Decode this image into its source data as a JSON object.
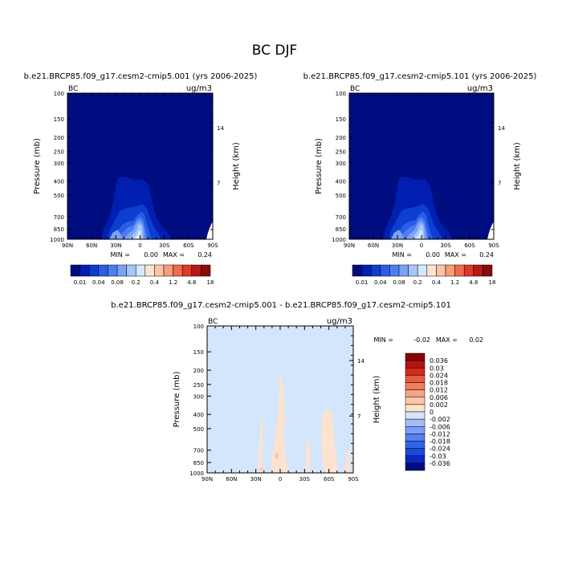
{
  "title": "BC DJF",
  "colors": {
    "top_palette": [
      "#000d80",
      "#001eb0",
      "#0c3ed0",
      "#2a5ee6",
      "#4d7ef0",
      "#7aa2f5",
      "#a8c5fa",
      "#d6e8ff",
      "#ffe5d0",
      "#fcc3a6",
      "#f79c7a",
      "#f06a4c",
      "#e0392a",
      "#b81818",
      "#8a0c0c"
    ],
    "diff_palette": [
      "#000d80",
      "#0a28c0",
      "#1d49e0",
      "#3364ec",
      "#567ff2",
      "#7b9ff7",
      "#a4bdf9",
      "#d4e6fb",
      "#fbe3cf",
      "#f9c6a7",
      "#f5a483",
      "#f0805f",
      "#e85a3e",
      "#d52a1f",
      "#b31410",
      "#8a0404"
    ],
    "diff_background": "#d4e6fb",
    "diff_patch": "#fbe3cf",
    "diff_patch_dark": "#f9c6a7"
  },
  "chart_data": [
    {
      "type": "heatmap",
      "title": "b.e21.BRCP85.f09_g17.cesm2-cmip5.001 (yrs 2006-2025)",
      "variable_label": "BC",
      "units_label": "ug/m3",
      "ylabel": "Pressure (mb)",
      "y2label": "Height (km)",
      "x_ticks": [
        "90N",
        "60N",
        "30N",
        "0",
        "30S",
        "60S",
        "90S"
      ],
      "y_ticks": [
        "100",
        "150",
        "200",
        "250",
        "300",
        "400",
        "500",
        "700",
        "850",
        "1000"
      ],
      "y2_ticks": [
        "14",
        "7"
      ],
      "min_label": "MIN =",
      "min_value": "0.00",
      "max_label": "MAX =",
      "max_value": "0.24",
      "colorbar_labels": [
        "0.01",
        "0.04",
        "0.08",
        "0.2",
        "0.4",
        "1.2",
        "4.8",
        "18"
      ],
      "field": {
        "max_center_lat": 0,
        "max_level_mb": 800,
        "plume_top_mb": 380,
        "plume_lat_range": [
          "45N",
          "20S"
        ]
      }
    },
    {
      "type": "heatmap",
      "title": "b.e21.BRCP85.f09_g17.cesm2-cmip5.101 (yrs 2006-2025)",
      "variable_label": "BC",
      "units_label": "ug/m3",
      "ylabel": "Pressure (mb)",
      "y2label": "Height (km)",
      "x_ticks": [
        "90N",
        "60N",
        "30N",
        "0",
        "30S",
        "60S",
        "90S"
      ],
      "y_ticks": [
        "100",
        "150",
        "200",
        "250",
        "300",
        "400",
        "500",
        "700",
        "850",
        "1000"
      ],
      "y2_ticks": [
        "14",
        "7"
      ],
      "min_label": "MIN =",
      "min_value": "0.00",
      "max_label": "MAX =",
      "max_value": "0.24",
      "colorbar_labels": [
        "0.01",
        "0.04",
        "0.08",
        "0.2",
        "0.4",
        "1.2",
        "4.8",
        "18"
      ],
      "field": {
        "max_center_lat": 0,
        "max_level_mb": 800,
        "plume_top_mb": 380,
        "plume_lat_range": [
          "45N",
          "20S"
        ]
      }
    },
    {
      "type": "heatmap",
      "title": "b.e21.BRCP85.f09_g17.cesm2-cmip5.001 - b.e21.BRCP85.f09_g17.cesm2-cmip5.101",
      "variable_label": "BC",
      "units_label": "ug/m3",
      "ylabel": "Pressure (mb)",
      "y2label": "Height (km)",
      "x_ticks": [
        "90N",
        "60N",
        "30N",
        "0",
        "30S",
        "60S",
        "90S"
      ],
      "y_ticks": [
        "100",
        "150",
        "200",
        "250",
        "300",
        "400",
        "500",
        "700",
        "850",
        "1000"
      ],
      "y2_ticks": [
        "14",
        "7"
      ],
      "min_label": "MIN =",
      "min_value": "-0.02",
      "max_label": "MAX =",
      "max_value": "0.02",
      "colorbar_labels": [
        "0.036",
        "0.03",
        "0.024",
        "0.018",
        "0.012",
        "0.006",
        "0.002",
        "0",
        "-0.002",
        "-0.006",
        "-0.012",
        "-0.018",
        "-0.024",
        "-0.03",
        "-0.036"
      ]
    }
  ]
}
